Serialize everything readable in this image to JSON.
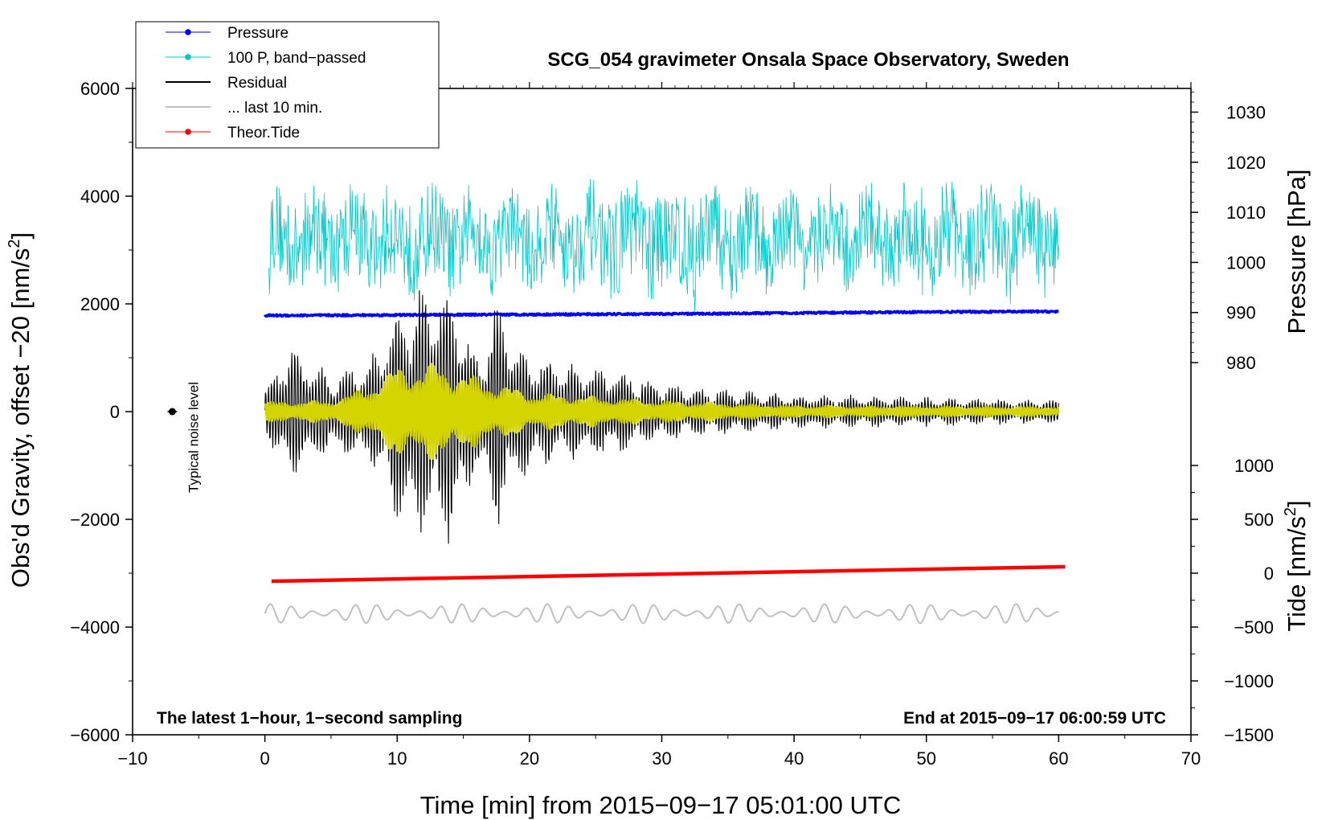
{
  "chart_data": {
    "type": "line",
    "title": "SCG_054 gravimeter Onsala Space Observatory, Sweden",
    "xlabel": "Time [min] from 2015−09−17 05:01:00 UTC",
    "ylabel_left_text": "Obs'd Gravity, offset −20 [nm/s",
    "ylabel_left_sup": "2",
    "ylabel_left_close": "]",
    "ylabel_pressure": "Pressure [hPa]",
    "ylabel_tide_text": "Tide [nm/s",
    "ylabel_tide_sup": "2",
    "ylabel_tide_close": "]",
    "xlim": [
      -10,
      70
    ],
    "ylim_left": [
      -6000,
      6000
    ],
    "x_ticks": [
      "−10",
      "0",
      "10",
      "20",
      "30",
      "40",
      "50",
      "60",
      "70"
    ],
    "x_tick_values": [
      -10,
      0,
      10,
      20,
      30,
      40,
      50,
      60,
      70
    ],
    "y_left_ticks": [
      "6000",
      "4000",
      "2000",
      "0",
      "−2000",
      "−4000",
      "−6000"
    ],
    "y_left_tick_values": [
      6000,
      4000,
      2000,
      0,
      -2000,
      -4000,
      -6000
    ],
    "pressure_axis": {
      "ticks": [
        "1030",
        "1020",
        "1010",
        "1000",
        "990",
        "980"
      ],
      "tick_values": [
        1030,
        1020,
        1010,
        1000,
        990,
        980
      ],
      "left_equivalent": [
        5560,
        4630,
        3700,
        2770,
        1840,
        910
      ]
    },
    "tide_axis": {
      "ticks": [
        "1000",
        "500",
        "0",
        "−500",
        "−1000",
        "−1500"
      ],
      "tick_values": [
        1000,
        500,
        0,
        -500,
        -1000,
        -1500
      ],
      "left_equivalent": [
        -1000,
        -2000,
        -3000,
        -4000,
        -5000,
        -6000
      ]
    },
    "legend": {
      "position": "top-left",
      "entries": [
        {
          "label": "Pressure",
          "color": "#0000ff",
          "marker": "dot"
        },
        {
          "label": "100 P, band−passed",
          "color": "#00c8c8",
          "marker": "dot"
        },
        {
          "label": "Residual",
          "color": "#000000",
          "marker": "none"
        },
        {
          "label": "... last 10 min.",
          "color": "#c0c0c0",
          "marker": "none"
        },
        {
          "label": "Theor.Tide",
          "color": "#ff0000",
          "marker": "dot"
        }
      ]
    },
    "series": [
      {
        "name": "Pressure",
        "color": "#0000ff",
        "axis": "pressure",
        "x": [
          0,
          10,
          20,
          30,
          40,
          50,
          60
        ],
        "values": [
          989.4,
          989.5,
          989.6,
          989.7,
          989.9,
          990.1,
          990.2
        ]
      },
      {
        "name": "100 P, band−passed",
        "color": "#00c8c8",
        "axis": "left",
        "x_range": [
          0.3,
          60
        ],
        "center": 3200,
        "amplitude_env": [
          [
            0,
            1200
          ],
          [
            10,
            1300
          ],
          [
            20,
            1100
          ],
          [
            30,
            1400
          ],
          [
            40,
            1100
          ],
          [
            50,
            1300
          ],
          [
            60,
            1200
          ]
        ]
      },
      {
        "name": "Residual",
        "color": "#000000",
        "axis": "left",
        "x_range": [
          0,
          60
        ],
        "center": 0,
        "amplitude_env": [
          [
            0,
            400
          ],
          [
            2,
            1200
          ],
          [
            5,
            700
          ],
          [
            8,
            900
          ],
          [
            10,
            1900
          ],
          [
            12,
            2300
          ],
          [
            14,
            2400
          ],
          [
            16,
            1000
          ],
          [
            17.5,
            2000
          ],
          [
            19,
            1200
          ],
          [
            22,
            900
          ],
          [
            26,
            800
          ],
          [
            30,
            500
          ],
          [
            40,
            300
          ],
          [
            50,
            250
          ],
          [
            60,
            200
          ]
        ]
      },
      {
        "name": "smoothed residual",
        "color": "#d4d400",
        "axis": "left",
        "x_range": [
          0,
          60
        ],
        "center": 0,
        "amplitude_env": [
          [
            0,
            180
          ],
          [
            5,
            200
          ],
          [
            8,
            500
          ],
          [
            10,
            850
          ],
          [
            13,
            900
          ],
          [
            16,
            650
          ],
          [
            20,
            350
          ],
          [
            30,
            200
          ],
          [
            40,
            110
          ],
          [
            60,
            90
          ]
        ]
      },
      {
        "name": "... last 10 min.",
        "color": "#c0c0c0",
        "axis": "left",
        "x_range": [
          0,
          60
        ],
        "center": -3750,
        "amplitude_env": [
          [
            0,
            180
          ],
          [
            60,
            180
          ]
        ]
      },
      {
        "name": "Theor.Tide",
        "color": "#ff0000",
        "axis": "tide",
        "x": [
          0.5,
          60.5
        ],
        "values": [
          -75,
          60
        ]
      }
    ],
    "noise_marker": {
      "x": -7,
      "y": 0,
      "label": "Typical noise level"
    },
    "annotations": {
      "bottom_left": "The latest 1−hour, 1−second sampling",
      "bottom_right": "End at 2015−09−17 06:00:59 UTC"
    },
    "grid": false
  }
}
